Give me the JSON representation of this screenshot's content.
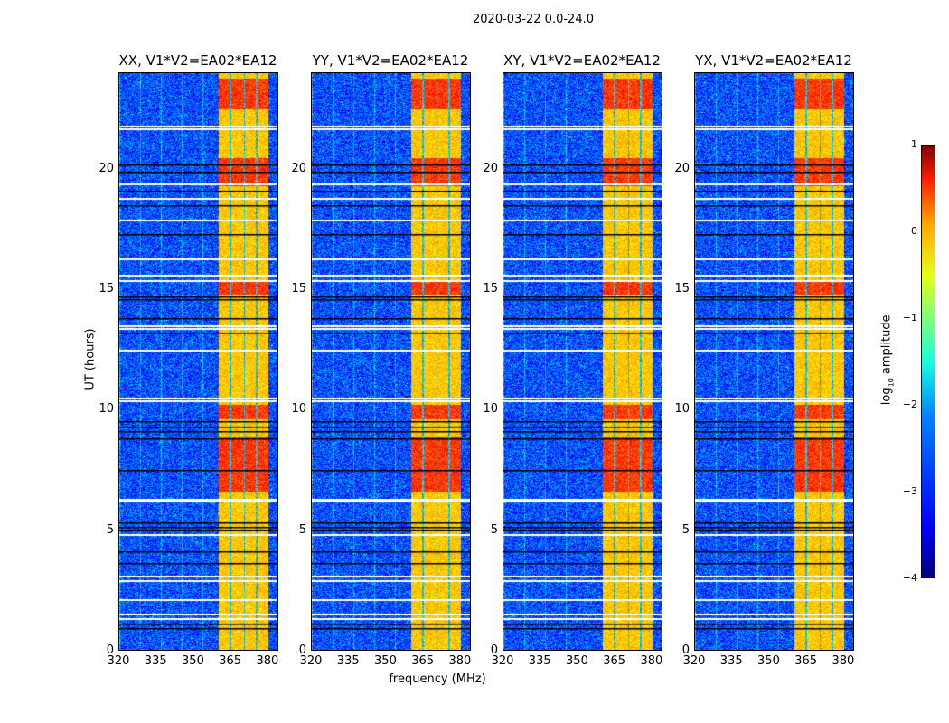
{
  "suptitle": "2020-03-22 0.0-24.0",
  "chart_data": {
    "type": "heatmap",
    "title": "2020-03-22 0.0-24.0",
    "xlabel": "frequency (MHz)",
    "ylabel": "UT (hours)",
    "xlim": [
      320,
      384.4
    ],
    "ylim": [
      0,
      24
    ],
    "xticks": [
      "320",
      "335",
      "350",
      "365",
      "380"
    ],
    "xtick_values": [
      320,
      335,
      350,
      365,
      380
    ],
    "yticks": [
      "0",
      "5",
      "10",
      "15",
      "20"
    ],
    "ytick_values": [
      0,
      5,
      10,
      15,
      20
    ],
    "panels": [
      {
        "title": "XX, V1*V2=EA02*EA12",
        "seed": 11
      },
      {
        "title": "YY, V1*V2=EA02*EA12",
        "seed": 23
      },
      {
        "title": "XY, V1*V2=EA02*EA12",
        "seed": 37
      },
      {
        "title": "YX, V1*V2=EA02*EA12",
        "seed": 53
      }
    ],
    "rfi_band_mhz": [
      360.4,
      380.4
    ],
    "rfi_gap_channels_mhz": [
      365.2,
      370.8,
      375.9
    ],
    "background_log10_amplitude": -3,
    "band_log10_amplitude": -0.6,
    "strong_rows_hours": [
      [
        6.6,
        8.9
      ],
      [
        9.6,
        10.2
      ],
      [
        14.8,
        15.4
      ],
      [
        19.3,
        20.5
      ],
      [
        22.5,
        23.8
      ]
    ],
    "flagged_white_hours": [
      21.8,
      21.7,
      19.4,
      18.8,
      17.9,
      16.3,
      15.6,
      15.4,
      13.5,
      13.4,
      12.5,
      10.5,
      10.4,
      6.3,
      6.2,
      4.8,
      3.1,
      2.9,
      2.1,
      1.5,
      1.3
    ],
    "flagged_black_hours": [
      20.2,
      19.9,
      19.1,
      18.5,
      17.3,
      14.7,
      14.6,
      13.8,
      13.2,
      9.5,
      9.3,
      9.1,
      8.8,
      7.5,
      5.3,
      5.1,
      5.0,
      4.1,
      3.6,
      1.1,
      0.9
    ],
    "colorbar": {
      "label": "log10 amplitude",
      "label_main": "log",
      "label_sub": "10",
      "label_rest": " amplitude",
      "range": [
        -4,
        1
      ],
      "ticks": [
        "1",
        "0",
        "−1",
        "−2",
        "−3",
        "−4"
      ],
      "tick_values": [
        1,
        0,
        -1,
        -2,
        -3,
        -4
      ],
      "colormap": "jet"
    }
  }
}
